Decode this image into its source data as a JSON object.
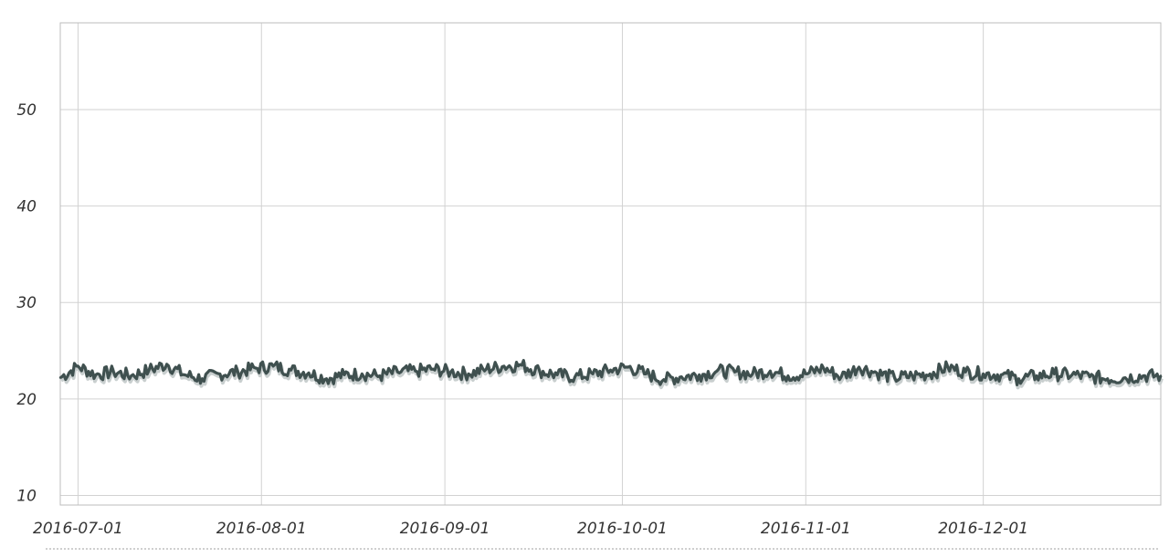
{
  "chart_data": {
    "type": "line",
    "title": "",
    "xlabel": "",
    "ylabel": "",
    "x_range": [
      "2016-06-28",
      "2016-12-31"
    ],
    "ylim": [
      9,
      59
    ],
    "grid": true,
    "legend": "none",
    "x_ticks": [
      "2016-07-01",
      "2016-08-01",
      "2016-09-01",
      "2016-10-01",
      "2016-11-01",
      "2016-12-01"
    ],
    "y_ticks": [
      10,
      20,
      30,
      40,
      50
    ],
    "colors": {
      "line": "#3f504f",
      "shadow": "#c9cfcf",
      "grid": "#d2d2d2",
      "frame": "#bdbdbd"
    },
    "series": [
      {
        "x": [
          "2016-06-28",
          "2016-07-01",
          "2016-07-04",
          "2016-07-07",
          "2016-07-10",
          "2016-07-13",
          "2016-07-16",
          "2016-07-19",
          "2016-07-22",
          "2016-07-25",
          "2016-07-28",
          "2016-07-31",
          "2016-08-03",
          "2016-08-06",
          "2016-08-09",
          "2016-08-12",
          "2016-08-15",
          "2016-08-18",
          "2016-08-21",
          "2016-08-24",
          "2016-08-27",
          "2016-08-30",
          "2016-09-02",
          "2016-09-05",
          "2016-09-08",
          "2016-09-11",
          "2016-09-14",
          "2016-09-17",
          "2016-09-20",
          "2016-09-23",
          "2016-09-26",
          "2016-09-29",
          "2016-10-02",
          "2016-10-05",
          "2016-10-08",
          "2016-10-11",
          "2016-10-14",
          "2016-10-17",
          "2016-10-20",
          "2016-10-23",
          "2016-10-26",
          "2016-10-29",
          "2016-11-01",
          "2016-11-04",
          "2016-11-07",
          "2016-11-10",
          "2016-11-13",
          "2016-11-16",
          "2016-11-19",
          "2016-11-22",
          "2016-11-25",
          "2016-11-28",
          "2016-12-01",
          "2016-12-04",
          "2016-12-07",
          "2016-12-10",
          "2016-12-13",
          "2016-12-16",
          "2016-12-19",
          "2016-12-22",
          "2016-12-25",
          "2016-12-28",
          "2016-12-31"
        ],
        "values": [
          22.2,
          23.4,
          22.5,
          22.8,
          22.4,
          23.0,
          23.6,
          22.5,
          22.1,
          22.6,
          22.8,
          23.2,
          23.4,
          23.0,
          22.7,
          22.1,
          22.5,
          22.6,
          22.4,
          22.8,
          22.9,
          23.1,
          22.8,
          22.6,
          23.1,
          23.4,
          23.5,
          22.9,
          22.5,
          22.3,
          22.6,
          23.0,
          23.3,
          22.6,
          22.0,
          22.3,
          22.5,
          22.9,
          22.8,
          22.6,
          22.9,
          22.4,
          22.6,
          23.2,
          22.3,
          23.3,
          22.7,
          22.2,
          22.4,
          22.6,
          23.3,
          22.8,
          22.6,
          22.5,
          22.1,
          22.4,
          22.6,
          22.5,
          22.3,
          22.1,
          22.2,
          22.4,
          22.4
        ]
      }
    ]
  }
}
